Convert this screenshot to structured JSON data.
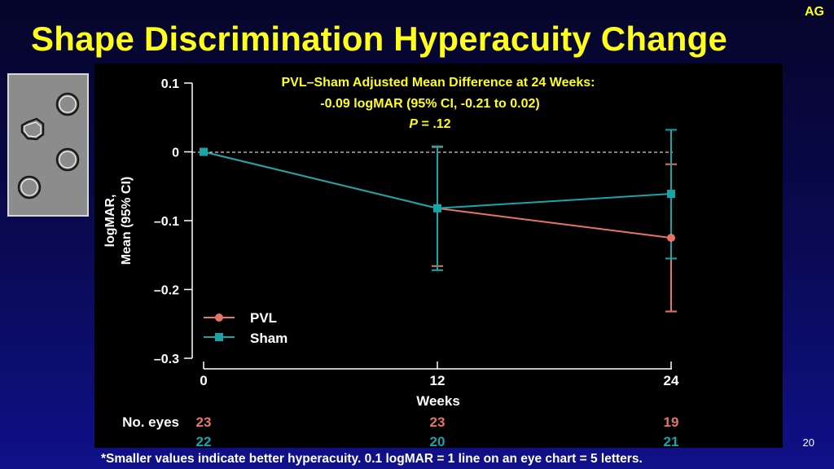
{
  "slide": {
    "corner_label": "AG",
    "title": "Shape Discrimination Hyperacuity Change",
    "footnote": "*Smaller values indicate better hyperacuity. 0.1 logMAR = 1 line on an eye chart = 5 letters.",
    "page_number": "20"
  },
  "colors": {
    "title": "#ffff1a",
    "pvl": "#e8736b",
    "sham": "#17a5a8",
    "background": "#000000"
  },
  "chart_data": {
    "type": "line",
    "annotation": [
      "PVL–Sham Adjusted Mean Difference at 24 Weeks:",
      "-0.09 logMAR (95% CI, -0.21 to 0.02)"
    ],
    "p_label": "P",
    "p_value": " = .12",
    "ylabel": [
      "logMAR,",
      "Mean (95% CI)"
    ],
    "xlabel": "Weeks",
    "ylim": [
      -0.3,
      0.1
    ],
    "yticks": [
      0.1,
      0,
      -0.1,
      -0.2,
      -0.3
    ],
    "ytick_labels": [
      "0.1",
      "0",
      "–0.1",
      "–0.2",
      "–0.3"
    ],
    "x": [
      0,
      12,
      24
    ],
    "xtick_labels": [
      "0",
      "12",
      "24"
    ],
    "reference_line": 0,
    "series": [
      {
        "name": "PVL",
        "values": [
          0,
          -0.082,
          -0.125
        ],
        "ci_low": [
          0,
          -0.166,
          -0.232
        ],
        "ci_high": [
          0,
          0.007,
          -0.018
        ],
        "marker": "circle"
      },
      {
        "name": "Sham",
        "values": [
          0,
          -0.082,
          -0.061
        ],
        "ci_low": [
          0,
          -0.172,
          -0.155
        ],
        "ci_high": [
          0,
          0.008,
          0.032
        ],
        "marker": "square"
      }
    ],
    "legend": [
      "PVL",
      "Sham"
    ],
    "legend_position": "bottom-left",
    "no_eyes_label": "No. eyes",
    "no_eyes": {
      "PVL": [
        "23",
        "23",
        "19"
      ],
      "Sham": [
        "22",
        "20",
        "21"
      ]
    }
  }
}
